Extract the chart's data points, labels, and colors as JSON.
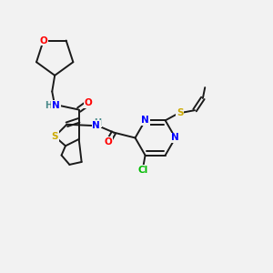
{
  "background_color": "#f2f2f2",
  "bond_color": "#1a1a1a",
  "atom_colors": {
    "N": "#0000ff",
    "O": "#ff0000",
    "S": "#ccaa00",
    "Cl": "#00bb00",
    "C": "#1a1a1a",
    "H": "#4a8a8a"
  },
  "figsize": [
    3.0,
    3.0
  ],
  "dpi": 100
}
